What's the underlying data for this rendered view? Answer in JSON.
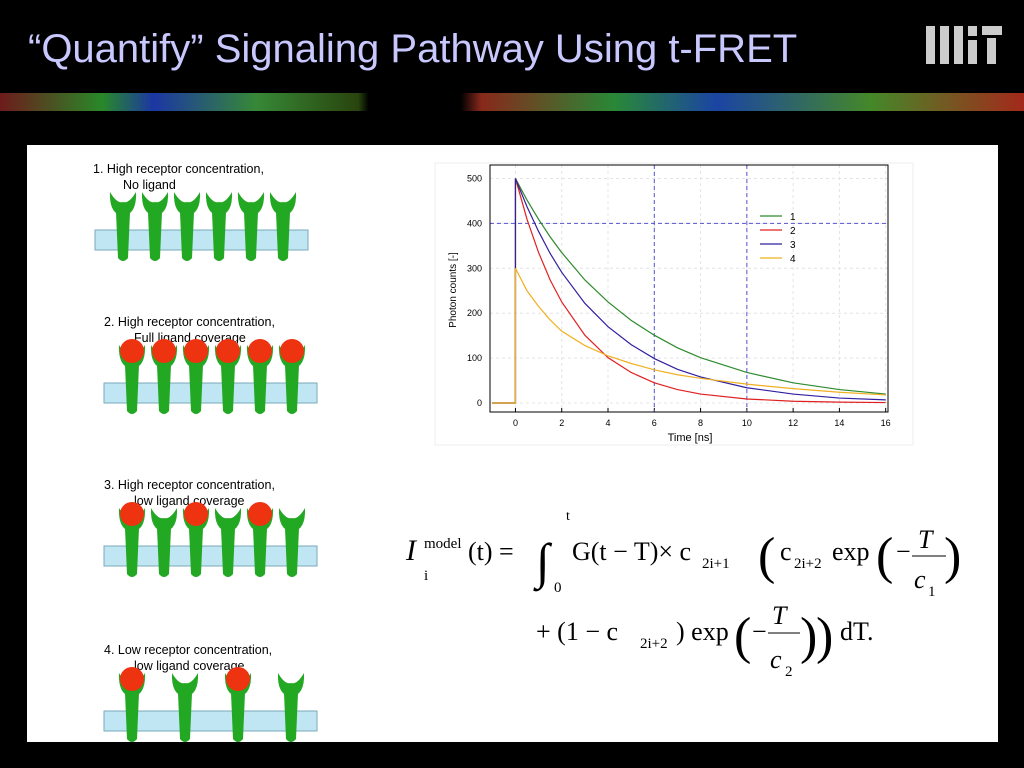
{
  "title": "“Quantify” Signaling Pathway Using t-FRET",
  "diagrams": [
    {
      "lines": [
        "1.  High  receptor  concentration,",
        "No ligand"
      ],
      "receptors": [
        false,
        false,
        false,
        false,
        false,
        false
      ]
    },
    {
      "lines": [
        "2.  High  receptor  concentration,",
        "Full ligand coverage"
      ],
      "receptors": [
        true,
        true,
        true,
        true,
        true,
        true
      ]
    },
    {
      "lines": [
        "3.  High  receptor  concentration,",
        "low ligand coverage"
      ],
      "receptors": [
        true,
        false,
        true,
        false,
        true,
        false
      ]
    },
    {
      "lines": [
        "4.  Low  receptor  concentration,",
        "low ligand coverage"
      ],
      "receptors": [
        true,
        false,
        true,
        false
      ]
    }
  ],
  "chart_data": {
    "type": "line",
    "x_label": "Time [ns]",
    "y_label": "Photon counts [-]",
    "x": [
      -1,
      0,
      0,
      0.5,
      1,
      1.5,
      2,
      3,
      4,
      5,
      6,
      7,
      8,
      10,
      12,
      14,
      16
    ],
    "series": [
      {
        "name": "1",
        "color": "#2e8b2e",
        "values": [
          0,
          0,
          500,
          452,
          409,
          370,
          335,
          274,
          225,
          184,
          151,
          123,
          101,
          68,
          45,
          30,
          20
        ]
      },
      {
        "name": "2",
        "color": "#e02020",
        "values": [
          0,
          0,
          500,
          409,
          335,
          274,
          225,
          151,
          101,
          68,
          45,
          30,
          20,
          9,
          4,
          2,
          1
        ]
      },
      {
        "name": "3",
        "color": "#3020a0",
        "values": [
          0,
          0,
          500,
          437,
          382,
          333,
          291,
          222,
          170,
          130,
          99,
          75,
          58,
          34,
          20,
          11,
          7
        ]
      },
      {
        "name": "4",
        "color": "#f0b020",
        "values": [
          0,
          0,
          300,
          250,
          215,
          185,
          160,
          128,
          105,
          88,
          74,
          63,
          55,
          42,
          32,
          24,
          18
        ]
      }
    ],
    "xlim": [
      -1.1,
      16.1
    ],
    "xticks": [
      0,
      2,
      4,
      6,
      8,
      10,
      12,
      14,
      16
    ],
    "ylim": [
      -20,
      530
    ],
    "yticks": [
      0,
      100,
      200,
      300,
      400,
      500
    ],
    "grid": true,
    "reference_lines": {
      "x": [
        6,
        10
      ],
      "y": [
        400
      ]
    },
    "legend": "upper right"
  },
  "equation": {
    "line1": [
      "I",
      "model",
      "i",
      "(t) = ",
      "∫",
      "t",
      "0",
      "G(t − T)× c",
      "2i+1",
      "(",
      "c",
      "2i+2",
      " exp",
      "(",
      "−",
      "T",
      "c",
      "1",
      ")"
    ],
    "line2": [
      "+ (1 − c",
      "2i+2",
      ") exp",
      "(",
      "−",
      "T",
      "c",
      "2",
      ")",
      ")",
      "dT."
    ]
  }
}
